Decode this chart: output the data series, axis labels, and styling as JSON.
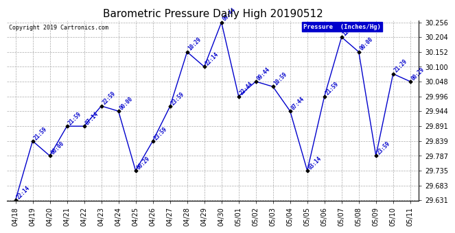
{
  "title": "Barometric Pressure Daily High 20190512",
  "copyright": "Copyright 2019 Cartronics.com",
  "legend_label": "Pressure  (Inches/Hg)",
  "dates": [
    "04/18",
    "04/19",
    "04/20",
    "04/21",
    "04/22",
    "04/23",
    "04/24",
    "04/25",
    "04/26",
    "04/27",
    "04/28",
    "04/29",
    "04/30",
    "05/01",
    "05/02",
    "05/03",
    "05/04",
    "05/05",
    "05/06",
    "05/07",
    "05/08",
    "05/09",
    "05/10",
    "05/11"
  ],
  "values": [
    29.631,
    29.839,
    29.787,
    29.891,
    29.891,
    29.962,
    29.944,
    29.735,
    29.839,
    29.96,
    30.152,
    30.1,
    30.256,
    29.996,
    30.048,
    30.03,
    29.944,
    29.735,
    29.996,
    30.204,
    30.152,
    29.787,
    30.075,
    30.048
  ],
  "annotations": [
    "22:14",
    "21:59",
    "00:00",
    "21:59",
    "07:14",
    "22:59",
    "00:00",
    "00:29",
    "23:59",
    "23:59",
    "10:29",
    "22:14",
    "09:44",
    "22:44",
    "09:44",
    "10:59",
    "07:44",
    "03:14",
    "21:59",
    "12:xx",
    "00:00",
    "23:59",
    "21:29",
    "00:29"
  ],
  "line_color": "#0000cc",
  "marker_color": "#000000",
  "annotation_color": "#0000cc",
  "background_color": "#ffffff",
  "grid_color": "#aaaaaa",
  "legend_bg": "#0000cc",
  "legend_fg": "#ffffff",
  "ylim_min": 29.631,
  "ylim_max": 30.256,
  "yticks": [
    29.631,
    29.683,
    29.735,
    29.787,
    29.839,
    29.891,
    29.944,
    29.996,
    30.048,
    30.1,
    30.152,
    30.204,
    30.256
  ],
  "title_fontsize": 11,
  "annotation_fontsize": 5.5,
  "tick_fontsize": 7,
  "copyright_fontsize": 6
}
